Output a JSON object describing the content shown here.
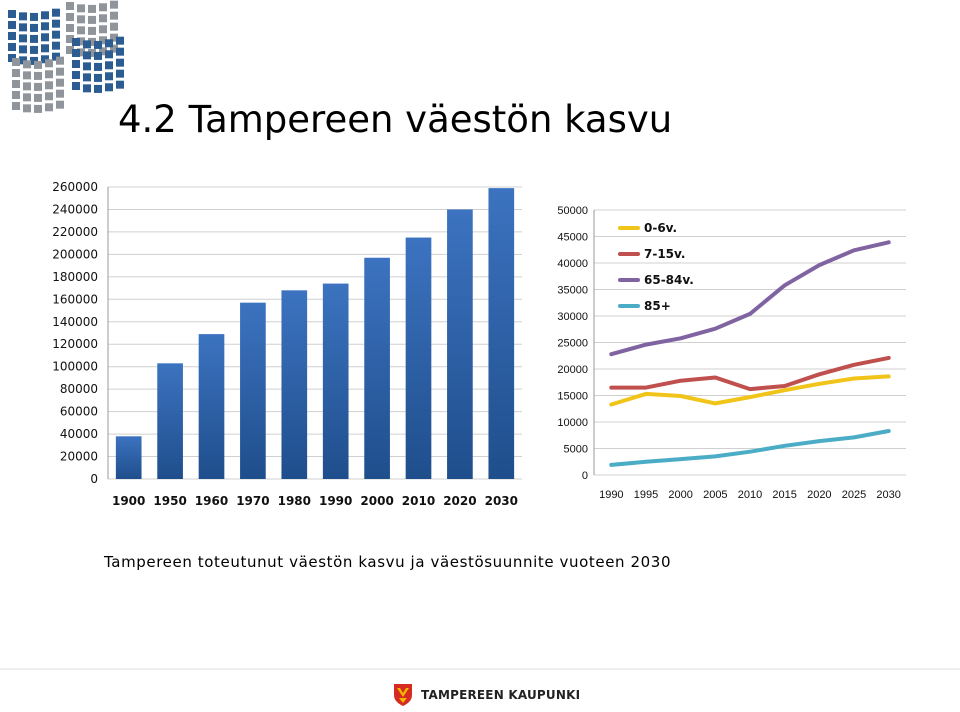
{
  "page": {
    "title": "4.2 Tampereen väestön kasvu",
    "caption": "Tampereen toteutunut väestön kasvu ja väestösuunnite vuoteen 2030",
    "footer_brand": "TAMPEREEN KAUPUNKI"
  },
  "colors": {
    "bar": "#2e62a8",
    "bar_top": "#3c73c0",
    "grid": "#d0d0d0",
    "logo_blue": "#2c5d92",
    "logo_gray": "#8f959b",
    "footer_red": "#d62b20",
    "footer_yellow": "#f2b705"
  },
  "chart_data": [
    {
      "type": "bar",
      "title": "",
      "xlabel": "",
      "ylabel": "",
      "categories": [
        "1900",
        "1950",
        "1960",
        "1970",
        "1980",
        "1990",
        "2000",
        "2010",
        "2020",
        "2030"
      ],
      "values": [
        38000,
        103000,
        129000,
        157000,
        168000,
        174000,
        197000,
        215000,
        240000,
        259000
      ],
      "ylim": [
        0,
        260000
      ],
      "yticks": [
        "0",
        "20000",
        "40000",
        "60000",
        "80000",
        "100000",
        "120000",
        "140000",
        "160000",
        "180000",
        "200000",
        "220000",
        "240000",
        "260000"
      ],
      "grid": true
    },
    {
      "type": "line",
      "title": "",
      "xlabel": "",
      "ylabel": "",
      "x": [
        "1990",
        "1995",
        "2000",
        "2005",
        "2010",
        "2015",
        "2020",
        "2025",
        "2030"
      ],
      "ylim": [
        0,
        50000
      ],
      "yticks": [
        "0",
        "5000",
        "10000",
        "15000",
        "20000",
        "25000",
        "30000",
        "35000",
        "40000",
        "45000",
        "50000"
      ],
      "grid": true,
      "legend": "top-left",
      "series": [
        {
          "name": "0-6v.",
          "color": "#f0c419",
          "values": [
            13300,
            15300,
            14900,
            13500,
            14700,
            16000,
            17200,
            18200,
            18600
          ]
        },
        {
          "name": "7-15v.",
          "color": "#c0504d",
          "values": [
            16500,
            16500,
            17800,
            18400,
            16200,
            16800,
            19000,
            20800,
            22100
          ]
        },
        {
          "name": "65-84v.",
          "color": "#8064a2",
          "values": [
            22800,
            24600,
            25800,
            27600,
            30400,
            35800,
            39600,
            42400,
            43900
          ]
        },
        {
          "name": "85+",
          "color": "#4bacc6",
          "values": [
            1900,
            2500,
            3000,
            3500,
            4400,
            5500,
            6400,
            7100,
            8300
          ]
        }
      ]
    }
  ]
}
